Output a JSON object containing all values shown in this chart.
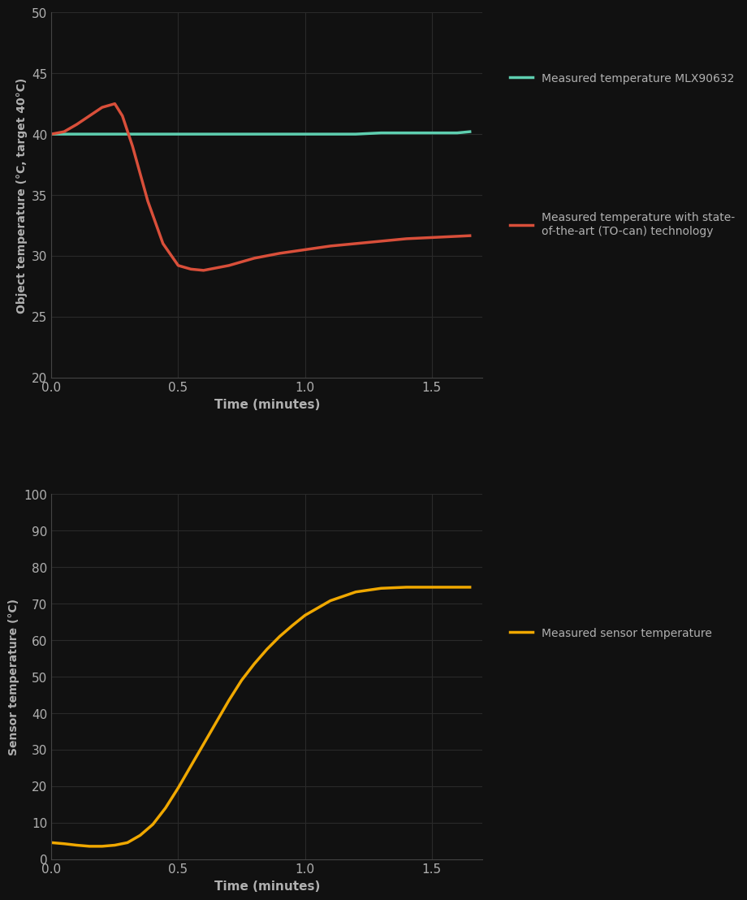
{
  "background_color": "#111111",
  "plot_bg_color": "#111111",
  "grid_color": "#2a2a2a",
  "text_color": "#b0b0b0",
  "axis_color": "#444444",
  "top_chart": {
    "xlabel": "Time (minutes)",
    "ylabel": "Object temperature (°C, target 40°C)",
    "xlim": [
      0,
      1.7
    ],
    "ylim": [
      20,
      50
    ],
    "yticks": [
      20,
      25,
      30,
      35,
      40,
      45,
      50
    ],
    "xticks": [
      0,
      0.5,
      1,
      1.5
    ],
    "mlx_color": "#5ecfb0",
    "tocan_color": "#d94f3a",
    "mlx_label": "Measured temperature MLX90632",
    "tocan_label": "Measured temperature with state-\nof-the-art (TO-can) technology",
    "mlx_x": [
      0,
      0.05,
      0.1,
      0.15,
      0.2,
      0.25,
      0.3,
      0.4,
      0.5,
      0.6,
      0.7,
      0.8,
      0.9,
      1.0,
      1.1,
      1.2,
      1.3,
      1.4,
      1.5,
      1.6,
      1.65
    ],
    "mlx_y": [
      40.0,
      40.0,
      40.0,
      40.0,
      40.0,
      40.0,
      40.0,
      40.0,
      40.0,
      40.0,
      40.0,
      40.0,
      40.0,
      40.0,
      40.0,
      40.0,
      40.1,
      40.1,
      40.1,
      40.1,
      40.2
    ],
    "tocan_x": [
      0,
      0.05,
      0.1,
      0.15,
      0.2,
      0.25,
      0.28,
      0.32,
      0.38,
      0.44,
      0.5,
      0.55,
      0.6,
      0.65,
      0.7,
      0.75,
      0.8,
      0.9,
      1.0,
      1.1,
      1.2,
      1.3,
      1.4,
      1.5,
      1.6,
      1.65
    ],
    "tocan_y": [
      40.0,
      40.2,
      40.8,
      41.5,
      42.2,
      42.5,
      41.5,
      39.0,
      34.5,
      31.0,
      29.2,
      28.9,
      28.8,
      29.0,
      29.2,
      29.5,
      29.8,
      30.2,
      30.5,
      30.8,
      31.0,
      31.2,
      31.4,
      31.5,
      31.6,
      31.65
    ]
  },
  "bottom_chart": {
    "xlabel": "Time (minutes)",
    "ylabel": "Sensor temperature (°C)",
    "xlim": [
      0,
      1.7
    ],
    "ylim": [
      0,
      100
    ],
    "yticks": [
      0,
      10,
      20,
      30,
      40,
      50,
      60,
      70,
      80,
      90,
      100
    ],
    "xticks": [
      0,
      0.5,
      1,
      1.5
    ],
    "sensor_color": "#f0a800",
    "sensor_label": "Measured sensor temperature",
    "sensor_x": [
      0,
      0.05,
      0.1,
      0.15,
      0.2,
      0.25,
      0.3,
      0.35,
      0.4,
      0.45,
      0.5,
      0.55,
      0.6,
      0.65,
      0.7,
      0.75,
      0.8,
      0.85,
      0.9,
      0.95,
      1.0,
      1.05,
      1.1,
      1.2,
      1.3,
      1.4,
      1.5,
      1.6,
      1.65
    ],
    "sensor_y": [
      4.5,
      4.2,
      3.8,
      3.5,
      3.5,
      3.8,
      4.5,
      6.5,
      9.5,
      14.0,
      19.5,
      25.5,
      31.5,
      37.5,
      43.5,
      49.0,
      53.5,
      57.5,
      61.0,
      64.0,
      66.8,
      68.8,
      70.8,
      73.2,
      74.2,
      74.5,
      74.5,
      74.5,
      74.5
    ]
  },
  "line_width": 2.5
}
